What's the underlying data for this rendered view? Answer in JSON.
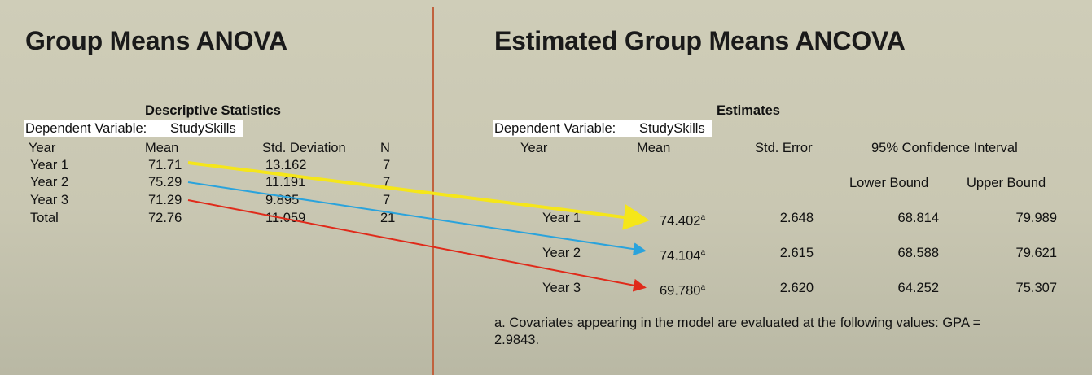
{
  "left": {
    "title": "Group Means ANOVA",
    "table_title": "Descriptive Statistics",
    "dv_label": "Dependent Variable:",
    "dv_value": "StudySkills",
    "columns": [
      "Year",
      "Mean",
      "Std. Deviation",
      "N"
    ],
    "rows": [
      {
        "year": "Year 1",
        "mean": "71.71",
        "sd": "13.162",
        "n": "7"
      },
      {
        "year": "Year 2",
        "mean": "75.29",
        "sd": "11.191",
        "n": "7"
      },
      {
        "year": "Year 3",
        "mean": "71.29",
        "sd": "9.895",
        "n": "7"
      },
      {
        "year": "Total",
        "mean": "72.76",
        "sd": "11.059",
        "n": "21"
      }
    ]
  },
  "right": {
    "title": "Estimated Group Means ANCOVA",
    "table_title": "Estimates",
    "dv_label": "Dependent Variable:",
    "dv_value": "StudySkills",
    "columns": {
      "year": "Year",
      "mean": "Mean",
      "se": "Std. Error",
      "ci": "95% Confidence Interval",
      "lower": "Lower Bound",
      "upper": "Upper Bound"
    },
    "rows": [
      {
        "year": "Year 1",
        "mean": "74.402",
        "sup": "a",
        "se": "2.648",
        "lower": "68.814",
        "upper": "79.989"
      },
      {
        "year": "Year 2",
        "mean": "74.104",
        "sup": "a",
        "se": "2.615",
        "lower": "68.588",
        "upper": "79.621"
      },
      {
        "year": "Year 3",
        "mean": "69.780",
        "sup": "a",
        "se": "2.620",
        "lower": "64.252",
        "upper": "75.307"
      }
    ],
    "footnote_line1": "a. Covariates appearing in the model are evaluated at the following values: GPA =",
    "footnote_line2": "2.9843."
  },
  "colors": {
    "arrow_year1": "#f5e61a",
    "arrow_year2": "#2aa3dc",
    "arrow_year3": "#e02a1a",
    "divider": "#c0623e"
  }
}
